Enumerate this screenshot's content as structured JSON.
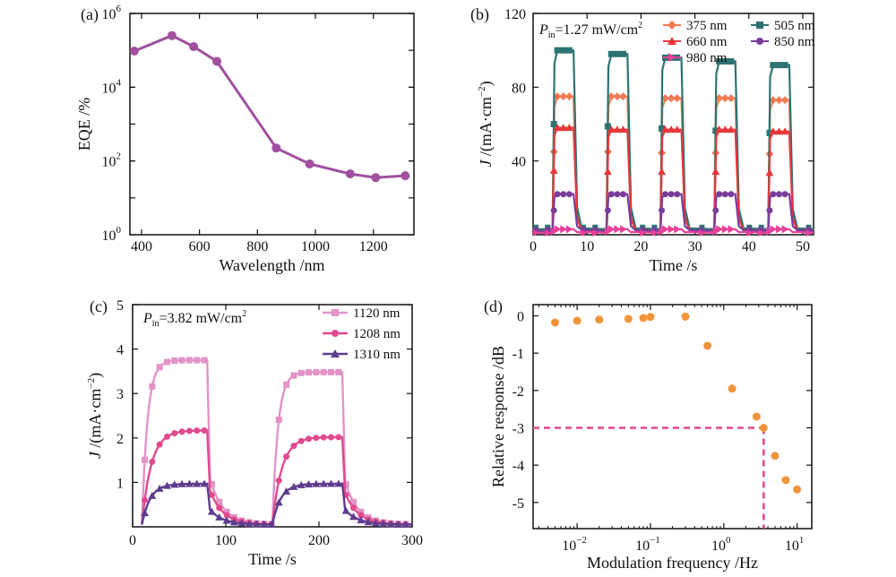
{
  "figure": {
    "background": "#ffffff"
  },
  "chart_data": [
    {
      "id": "a",
      "type": "line",
      "panel_label": "(a)",
      "xlabel": "Wavelength /nm",
      "ylabel": "EQE /%",
      "y_scale": "log",
      "xlim": [
        360,
        1340
      ],
      "ylim_exp": [
        0,
        6
      ],
      "xticks": [
        "400",
        "600",
        "800",
        "1000",
        "1200"
      ],
      "xtick_values": [
        400,
        600,
        800,
        1000,
        1200
      ],
      "yticks": [
        "10",
        "10",
        "10",
        "10"
      ],
      "ytick_exponents": [
        "0",
        "2",
        "4",
        "6"
      ],
      "ytick_values_exp": [
        0,
        2,
        4,
        6
      ],
      "series": [
        {
          "name": "EQE",
          "color": "#a0509f",
          "marker": "circle",
          "x": [
            375,
            505,
            580,
            660,
            865,
            980,
            1120,
            1208,
            1310
          ],
          "log10_y": [
            4.98,
            5.4,
            5.1,
            4.7,
            2.35,
            1.92,
            1.65,
            1.55,
            1.6
          ]
        }
      ]
    },
    {
      "id": "b",
      "type": "line",
      "panel_label": "(b)",
      "xlabel": "Time /s",
      "ylabel": "J /(mA·cm⁻²)",
      "ylabel_main": "J",
      "ylabel_rest": " /(mA·cm",
      "ylabel_sup": "−2",
      "ylabel_end": ")",
      "xlim": [
        0,
        52
      ],
      "ylim": [
        0,
        120
      ],
      "xticks": [
        "0",
        "10",
        "20",
        "30",
        "40",
        "50"
      ],
      "xtick_values": [
        0,
        10,
        20,
        30,
        40,
        50
      ],
      "yticks": [
        "40",
        "80",
        "120"
      ],
      "ytick_values": [
        40,
        80,
        120
      ],
      "annotation": {
        "p": "P",
        "sub": "in",
        "value": "=1.27 mW/cm",
        "sup": "2"
      },
      "on_intervals": [
        [
          3.6,
          7.8
        ],
        [
          13.6,
          17.8
        ],
        [
          23.6,
          27.8
        ],
        [
          33.6,
          37.8
        ],
        [
          43.6,
          47.8
        ]
      ],
      "series": [
        {
          "name": "375 nm",
          "color": "#f27a55",
          "marker": "diamond",
          "off": 3,
          "on": [
            75,
            75,
            74,
            74,
            73
          ]
        },
        {
          "name": "505 nm",
          "color": "#2c7371",
          "marker": "square",
          "off": 3,
          "on": [
            100,
            98,
            96,
            94,
            92
          ]
        },
        {
          "name": "660 nm",
          "color": "#e8373a",
          "marker": "triangle",
          "off": 2,
          "on": [
            58,
            57,
            57,
            57,
            56
          ]
        },
        {
          "name": "850 nm",
          "color": "#7a3d9b",
          "marker": "circle",
          "off": 2,
          "on": [
            22,
            22,
            22,
            22,
            22
          ]
        },
        {
          "name": "980 nm",
          "color": "#e6409a",
          "marker": "triangle-right",
          "off": 1,
          "on": [
            3,
            3,
            3,
            3,
            3
          ]
        }
      ]
    },
    {
      "id": "c",
      "type": "line",
      "panel_label": "(c)",
      "xlabel": "Time /s",
      "ylabel_main": "J",
      "ylabel_rest": " /(mA·cm",
      "ylabel_sup": "−2",
      "ylabel_end": ")",
      "xlim": [
        0,
        300
      ],
      "ylim": [
        0,
        5
      ],
      "xticks": [
        "0",
        "100",
        "200",
        "300"
      ],
      "xtick_values": [
        0,
        100,
        200,
        300
      ],
      "yticks": [
        "1",
        "2",
        "3",
        "4",
        "5"
      ],
      "ytick_values": [
        1,
        2,
        3,
        4,
        5
      ],
      "annotation": {
        "p": "P",
        "sub": "in",
        "value": "=3.82 mW/cm",
        "sup": "2"
      },
      "on_intervals": [
        [
          10,
          80
        ],
        [
          150,
          225
        ]
      ],
      "series": [
        {
          "name": "1120 nm",
          "color": "#e393c7",
          "marker": "square",
          "on": [
            3.75,
            3.48
          ]
        },
        {
          "name": "1208 nm",
          "color": "#e04b8f",
          "marker": "circle",
          "on": [
            2.17,
            2.02
          ]
        },
        {
          "name": "1310 nm",
          "color": "#5e3d8e",
          "marker": "triangle",
          "on": [
            0.97,
            0.97
          ]
        }
      ]
    },
    {
      "id": "d",
      "type": "scatter",
      "panel_label": "(d)",
      "xlabel": "Modulation frequency /Hz",
      "ylabel": "Relative response /dB",
      "x_scale": "log",
      "xlim_exp": [
        -2.6,
        1.2
      ],
      "ylim": [
        -5.7,
        0.3
      ],
      "xticks": [
        "10",
        "10",
        "10",
        "10"
      ],
      "xtick_exponents": [
        "−2",
        "−1",
        "0",
        "1"
      ],
      "xtick_values_exp": [
        -2,
        -1,
        0,
        1
      ],
      "yticks": [
        "0",
        "-1",
        "-2",
        "-3",
        "-4",
        "-5"
      ],
      "ytick_values": [
        0,
        -1,
        -2,
        -3,
        -4,
        -5
      ],
      "points_color": "#f0943c",
      "x": [
        0.005,
        0.01,
        0.02,
        0.05,
        0.08,
        0.1,
        0.3,
        0.6,
        1.3,
        2.8,
        3.5,
        5,
        7,
        10
      ],
      "y": [
        -0.18,
        -0.13,
        -0.1,
        -0.08,
        -0.06,
        -0.03,
        -0.02,
        -0.8,
        -1.95,
        -2.7,
        -3.0,
        -3.75,
        -4.4,
        -4.65
      ],
      "cutoff": {
        "x": 3.5,
        "y": -3,
        "color": "#e0468c"
      }
    }
  ]
}
